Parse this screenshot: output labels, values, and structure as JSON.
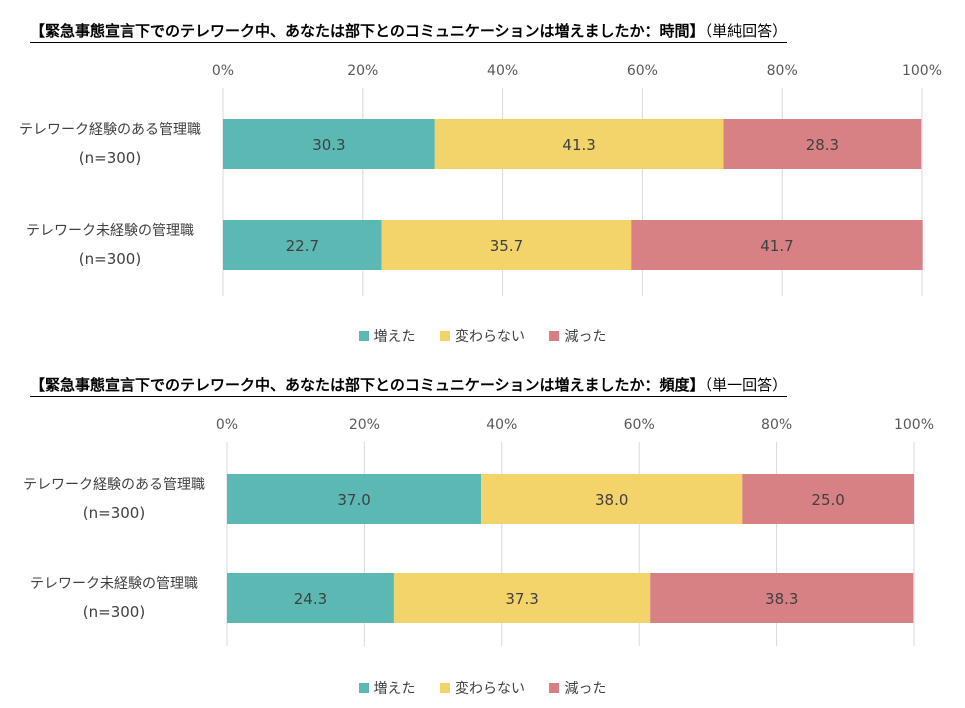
{
  "legend": [
    {
      "label": "増えた",
      "color": "#5bb8b3"
    },
    {
      "label": "変わらない",
      "color": "#f3d46a"
    },
    {
      "label": "減った",
      "color": "#d88185"
    }
  ],
  "charts": [
    {
      "title": "【緊急事態宣言下でのテレワーク中、あなたは部下とのコミュニケーションは増えましたか：時間】",
      "subtitle": "（単純回答）"
    },
    {
      "title": "【緊急事態宣言下でのテレワーク中、あなたは部下とのコミュニケーションは増えましたか：頻度】",
      "subtitle": "（単一回答）"
    }
  ],
  "chart_data": [
    {
      "type": "bar",
      "orientation": "horizontal",
      "stacked": "percent",
      "categories": [
        [
          "テレワーク経験のある管理職",
          "(n=300)"
        ],
        [
          "テレワーク未経験の管理職",
          "(n=300)"
        ]
      ],
      "series": [
        {
          "name": "増えた",
          "values": [
            30.3,
            22.7
          ]
        },
        {
          "name": "変わらない",
          "values": [
            41.3,
            35.7
          ]
        },
        {
          "name": "減った",
          "values": [
            28.3,
            41.7
          ]
        }
      ],
      "xlim": [
        0,
        100
      ],
      "xticks": [
        "0%",
        "20%",
        "40%",
        "60%",
        "80%",
        "100%"
      ],
      "grid": true,
      "legend_position": "bottom"
    },
    {
      "type": "bar",
      "orientation": "horizontal",
      "stacked": "percent",
      "categories": [
        [
          "テレワーク経験のある管理職",
          "(n=300)"
        ],
        [
          "テレワーク未経験の管理職",
          "(n=300)"
        ]
      ],
      "series": [
        {
          "name": "増えた",
          "values": [
            37.0,
            24.3
          ]
        },
        {
          "name": "変わらない",
          "values": [
            38.0,
            37.3
          ]
        },
        {
          "name": "減った",
          "values": [
            25.0,
            38.3
          ]
        }
      ],
      "xlim": [
        0,
        100
      ],
      "xticks": [
        "0%",
        "20%",
        "40%",
        "60%",
        "80%",
        "100%"
      ],
      "grid": true,
      "legend_position": "bottom"
    }
  ]
}
